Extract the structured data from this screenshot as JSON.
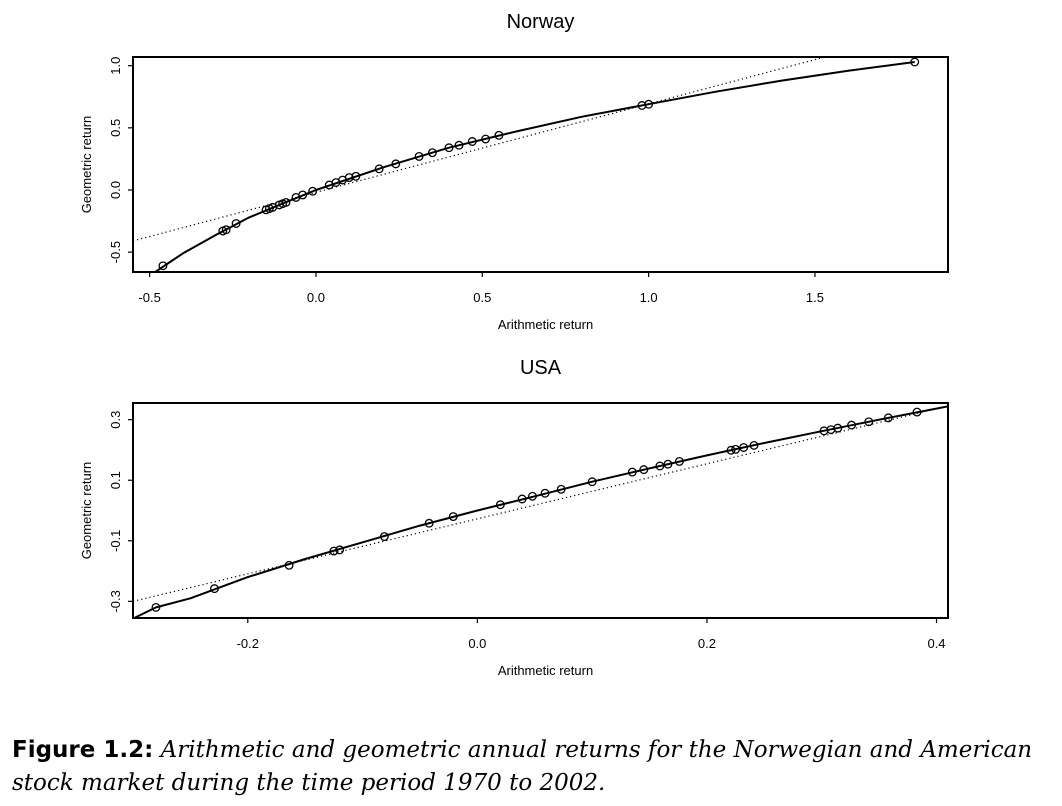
{
  "chart_data": [
    {
      "type": "scatter",
      "title": "Norway",
      "xlabel": "Arithmetic return",
      "ylabel": "Geometric return",
      "xlim": [
        -0.55,
        1.9
      ],
      "ylim": [
        -0.66,
        1.07
      ],
      "xticks": [
        -0.5,
        0.0,
        0.5,
        1.0,
        1.5
      ],
      "xtick_labels": [
        "-0.5",
        "0.0",
        "0.5",
        "1.0",
        "1.5"
      ],
      "yticks": [
        -0.5,
        0.0,
        0.5,
        1.0
      ],
      "ytick_labels": [
        "-0.5",
        "0.0",
        "0.5",
        "1.0"
      ],
      "grid": false,
      "series": [
        {
          "style": "points-open-circle",
          "x": [
            -0.46,
            -0.28,
            -0.27,
            -0.24,
            -0.15,
            -0.14,
            -0.13,
            -0.11,
            -0.1,
            -0.09,
            -0.06,
            -0.04,
            -0.01,
            0.04,
            0.06,
            0.08,
            0.1,
            0.12,
            0.19,
            0.24,
            0.31,
            0.35,
            0.4,
            0.43,
            0.47,
            0.51,
            0.55,
            0.98,
            1.0,
            1.8
          ],
          "y": [
            -0.61,
            -0.33,
            -0.32,
            -0.27,
            -0.16,
            -0.15,
            -0.14,
            -0.12,
            -0.11,
            -0.1,
            -0.06,
            -0.04,
            -0.01,
            0.04,
            0.06,
            0.08,
            0.1,
            0.11,
            0.17,
            0.21,
            0.27,
            0.3,
            0.34,
            0.36,
            0.39,
            0.41,
            0.44,
            0.68,
            0.69,
            1.03
          ]
        },
        {
          "style": "solid-curve",
          "x": [
            -0.5,
            -0.45,
            -0.4,
            -0.3,
            -0.2,
            -0.1,
            0.0,
            0.2,
            0.4,
            0.6,
            0.8,
            1.0,
            1.2,
            1.4,
            1.6,
            1.8
          ],
          "y": [
            -0.69,
            -0.6,
            -0.51,
            -0.36,
            -0.22,
            -0.11,
            0.0,
            0.18,
            0.34,
            0.47,
            0.59,
            0.69,
            0.79,
            0.88,
            0.96,
            1.03
          ]
        },
        {
          "style": "dotted-line",
          "x": [
            -0.55,
            1.53
          ],
          "y": [
            -0.41,
            1.07
          ]
        }
      ]
    },
    {
      "type": "scatter",
      "title": "USA",
      "xlabel": "Arithmetic return",
      "ylabel": "Geometric return",
      "xlim": [
        -0.3,
        0.41
      ],
      "ylim": [
        -0.355,
        0.355
      ],
      "xticks": [
        -0.2,
        0.0,
        0.2,
        0.4
      ],
      "xtick_labels": [
        "-0.2",
        "0.0",
        "0.2",
        "0.4"
      ],
      "yticks": [
        -0.3,
        -0.1,
        0.1,
        0.3
      ],
      "ytick_labels": [
        "-0.3",
        "-0.1",
        "0.1",
        "0.3"
      ],
      "grid": false,
      "series": [
        {
          "style": "points-open-circle",
          "x": [
            -0.28,
            -0.229,
            -0.164,
            -0.125,
            -0.12,
            -0.081,
            -0.042,
            -0.021,
            0.02,
            0.039,
            0.048,
            0.059,
            0.073,
            0.1,
            0.135,
            0.145,
            0.159,
            0.166,
            0.176,
            0.221,
            0.225,
            0.232,
            0.241,
            0.302,
            0.308,
            0.314,
            0.326,
            0.341,
            0.358,
            0.383
          ],
          "y": [
            -0.32,
            -0.258,
            -0.181,
            -0.134,
            -0.13,
            -0.086,
            -0.042,
            -0.02,
            0.019,
            0.038,
            0.047,
            0.057,
            0.07,
            0.095,
            0.127,
            0.135,
            0.147,
            0.153,
            0.162,
            0.199,
            0.202,
            0.208,
            0.215,
            0.263,
            0.267,
            0.272,
            0.282,
            0.293,
            0.306,
            0.325
          ]
        },
        {
          "style": "solid-curve",
          "x": [
            -0.3,
            -0.28,
            -0.25,
            -0.2,
            -0.15,
            -0.1,
            -0.05,
            0.0,
            0.05,
            0.1,
            0.15,
            0.2,
            0.25,
            0.3,
            0.35,
            0.41
          ],
          "y": [
            -0.357,
            -0.32,
            -0.29,
            -0.22,
            -0.16,
            -0.105,
            -0.05,
            0.0,
            0.047,
            0.095,
            0.139,
            0.182,
            0.223,
            0.262,
            0.3,
            0.344
          ]
        },
        {
          "style": "dotted-line",
          "x": [
            -0.3,
            0.41
          ],
          "y": [
            -0.3,
            0.345
          ]
        }
      ]
    }
  ],
  "caption": {
    "figure_label": "Figure 1.2:",
    "text": "Arithmetic and geometric annual returns for the Norwegian and American stock market during the time period 1970 to 2002."
  }
}
